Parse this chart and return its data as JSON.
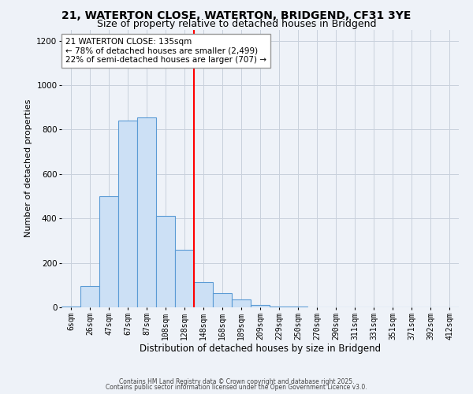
{
  "title": "21, WATERTON CLOSE, WATERTON, BRIDGEND, CF31 3YE",
  "subtitle": "Size of property relative to detached houses in Bridgend",
  "xlabel": "Distribution of detached houses by size in Bridgend",
  "ylabel": "Number of detached properties",
  "bar_labels": [
    "6sqm",
    "26sqm",
    "47sqm",
    "67sqm",
    "87sqm",
    "108sqm",
    "128sqm",
    "148sqm",
    "168sqm",
    "189sqm",
    "209sqm",
    "229sqm",
    "250sqm",
    "270sqm",
    "290sqm",
    "311sqm",
    "331sqm",
    "351sqm",
    "371sqm",
    "392sqm",
    "412sqm"
  ],
  "bar_values": [
    5,
    95,
    500,
    840,
    855,
    410,
    260,
    115,
    65,
    35,
    10,
    5,
    2,
    1,
    0,
    0,
    0,
    0,
    0,
    0,
    0
  ],
  "bar_color": "#cce0f5",
  "bar_edge_color": "#5b9bd5",
  "vline_color": "red",
  "vline_index": 6,
  "ylim": [
    0,
    1250
  ],
  "yticks": [
    0,
    200,
    400,
    600,
    800,
    1000,
    1200
  ],
  "grid_color": "#c8d0dc",
  "bg_color": "#eef2f8",
  "annotation_title": "21 WATERTON CLOSE: 135sqm",
  "annotation_line1": "← 78% of detached houses are smaller (2,499)",
  "annotation_line2": "22% of semi-detached houses are larger (707) →",
  "footer1": "Contains HM Land Registry data © Crown copyright and database right 2025.",
  "footer2": "Contains public sector information licensed under the Open Government Licence v3.0.",
  "title_fontsize": 10,
  "subtitle_fontsize": 9,
  "xlabel_fontsize": 8.5,
  "ylabel_fontsize": 8,
  "tick_fontsize": 7,
  "ytick_fontsize": 7.5,
  "footer_fontsize": 5.5,
  "ann_fontsize": 7.5
}
